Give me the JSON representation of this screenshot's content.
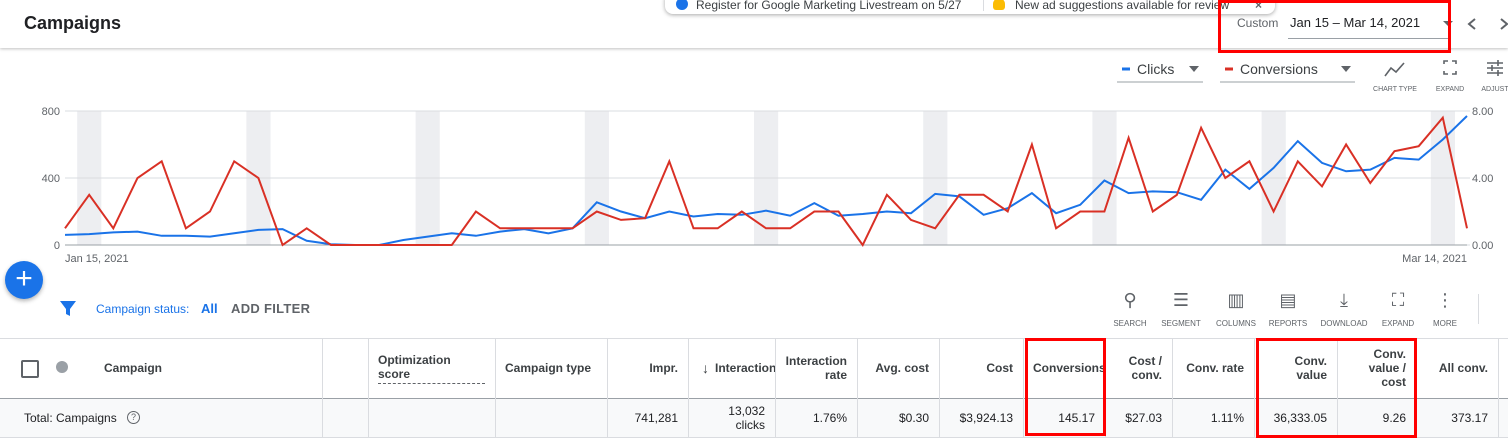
{
  "header": {
    "title": "Campaigns",
    "notifications": [
      "Register for Google Marketing Livestream on 5/27",
      "New ad suggestions available for review"
    ],
    "date_label": "Custom",
    "date_range": "Jan 15 – Mar 14, 2021"
  },
  "chart_tools": [
    "CHART TYPE",
    "EXPAND",
    "ADJUST"
  ],
  "chart_data": {
    "type": "line",
    "categories": [
      "Jan 15, 2021",
      null,
      null,
      null,
      null,
      null,
      null,
      null,
      null,
      null,
      null,
      null,
      null,
      null,
      null,
      null,
      null,
      null,
      null,
      null,
      null,
      null,
      null,
      null,
      null,
      null,
      null,
      null,
      null,
      null,
      null,
      null,
      null,
      null,
      null,
      null,
      null,
      null,
      null,
      null,
      null,
      null,
      null,
      null,
      null,
      null,
      null,
      null,
      null,
      null,
      null,
      null,
      null,
      null,
      null,
      null,
      null,
      null,
      "Mar 14, 2021"
    ],
    "ylim": [
      0,
      800
    ],
    "yticks": [
      0,
      400,
      800
    ],
    "y2lim": [
      0,
      8
    ],
    "y2ticks": [
      {
        "value": 0,
        "label": "0.00"
      },
      {
        "value": 4,
        "label": "4.00"
      },
      {
        "value": 8,
        "label": "8.00"
      }
    ],
    "grid": true,
    "series": [
      {
        "name": "Clicks",
        "color": "#1a73e8",
        "values": [
          60,
          65,
          75,
          80,
          55,
          55,
          50,
          70,
          90,
          95,
          25,
          5,
          0,
          0,
          30,
          50,
          70,
          55,
          80,
          95,
          70,
          100,
          255,
          200,
          160,
          200,
          170,
          185,
          180,
          205,
          175,
          250,
          175,
          185,
          200,
          190,
          305,
          290,
          180,
          220,
          310,
          190,
          240,
          385,
          310,
          320,
          315,
          270,
          450,
          335,
          460,
          620,
          490,
          440,
          450,
          520,
          510,
          630,
          770
        ]
      },
      {
        "name": "Conversions",
        "color": "#d93025",
        "axis": "y2",
        "values": [
          1,
          3,
          1,
          4,
          5,
          1,
          2,
          5,
          4,
          0,
          1,
          0,
          0,
          0,
          0,
          0,
          0,
          2,
          1,
          1,
          1,
          1,
          2,
          1.5,
          1.6,
          5,
          1,
          1,
          2,
          1,
          1,
          2,
          2,
          0,
          3,
          1.5,
          1,
          3,
          3,
          2,
          6,
          1,
          2,
          2,
          6.4,
          2,
          3,
          7,
          4,
          5,
          2,
          5,
          3.5,
          6,
          3.7,
          5.6,
          5.9,
          7.6,
          1
        ]
      }
    ]
  },
  "filter": {
    "label": "Campaign status:",
    "value": "All",
    "add": "ADD FILTER"
  },
  "table_tools": [
    "SEARCH",
    "SEGMENT",
    "COLUMNS",
    "REPORTS",
    "DOWNLOAD",
    "EXPAND",
    "MORE"
  ],
  "table": {
    "columns": [
      "Campaign",
      "Optimization score",
      "Campaign type",
      "Impr.",
      "Interactions",
      "Interaction rate",
      "Avg. cost",
      "Cost",
      "Conversions",
      "Cost / conv.",
      "Conv. rate",
      "Conv. value",
      "Conv. value / cost",
      "All conv."
    ],
    "total_label": "Total: Campaigns",
    "total_cells": [
      "741,281",
      "13,032",
      "1.76%",
      "$0.30",
      "$3,924.13",
      "145.17",
      "$27.03",
      "1.11%",
      "36,333.05",
      "9.26",
      "373.17"
    ],
    "interactions_unit": "clicks"
  }
}
